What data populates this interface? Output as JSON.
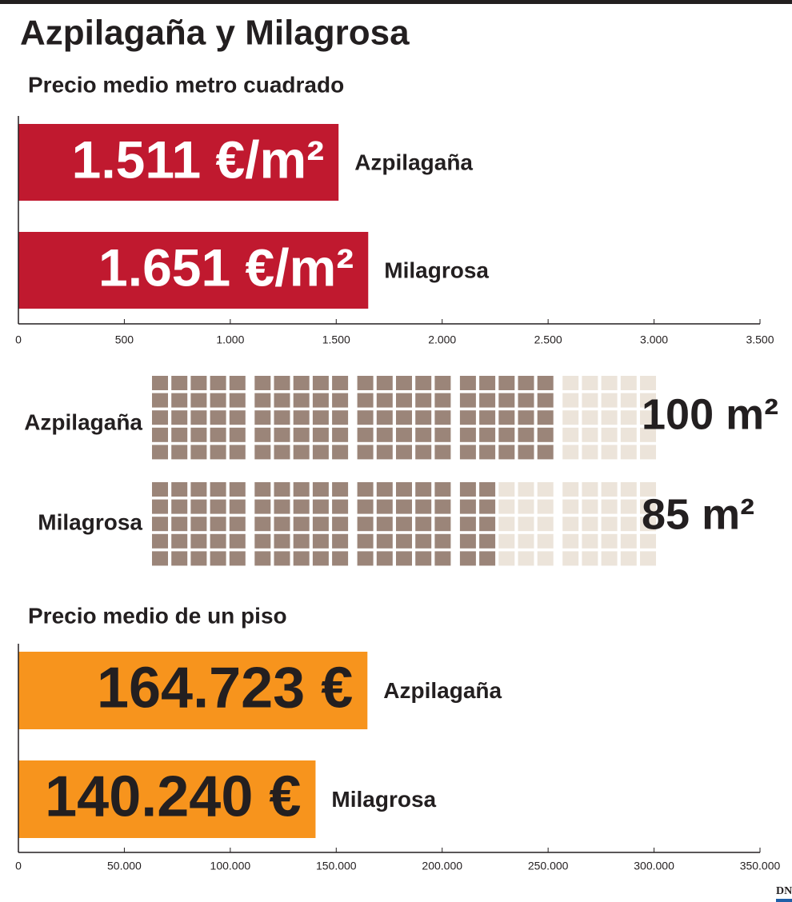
{
  "title": "Azpilagaña y Milagrosa",
  "logo": "DN",
  "chart_data": [
    {
      "type": "hbar",
      "subtitle": "Precio medio metro cuadrado",
      "categories": [
        "Azpilagaña",
        "Milagrosa"
      ],
      "values": [
        1511,
        1651
      ],
      "value_labels": [
        "1.511 €/m²",
        "1.651 €/m²"
      ],
      "color": "#c0192f",
      "xlim": [
        0,
        3500
      ],
      "xticks": [
        0,
        500,
        {
          "value": 1000,
          "label": "1.000"
        },
        {
          "value": 1500,
          "label": "1.500"
        },
        {
          "value": 2000,
          "label": "2.000"
        },
        {
          "value": 2500,
          "label": "2.500"
        },
        {
          "value": 3000,
          "label": "3.000"
        },
        {
          "value": 3500,
          "label": "3.500"
        }
      ]
    },
    {
      "type": "waffle",
      "categories": [
        "Azpilagaña",
        "Milagrosa"
      ],
      "values": [
        100,
        85
      ],
      "value_labels": [
        "100 m²",
        "85 m²"
      ],
      "color": "#9b8579"
    },
    {
      "type": "hbar",
      "subtitle": "Precio medio de un piso",
      "categories": [
        "Azpilagaña",
        "Milagrosa"
      ],
      "values": [
        164723,
        140240
      ],
      "value_labels": [
        "164.723 €",
        "140.240 €"
      ],
      "color": "#f7941d",
      "xlim": [
        0,
        350000
      ],
      "xticks": [
        0,
        {
          "value": 50000,
          "label": "50.000"
        },
        {
          "value": 100000,
          "label": "100.000"
        },
        {
          "value": 150000,
          "label": "150.000"
        },
        {
          "value": 200000,
          "label": "200.000"
        },
        {
          "value": 250000,
          "label": "250.000"
        },
        {
          "value": 300000,
          "label": "300.000"
        },
        {
          "value": 350000,
          "label": "350.000"
        }
      ]
    }
  ]
}
